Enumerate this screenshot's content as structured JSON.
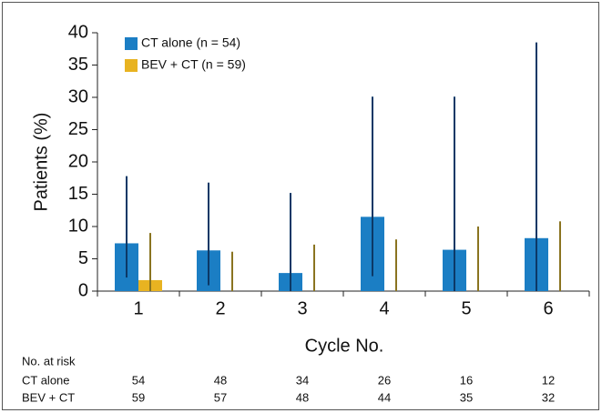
{
  "chart_data": {
    "type": "bar",
    "x_label": "Cycle No.",
    "y_label": "Patients (%)",
    "categories": [
      "1",
      "2",
      "3",
      "4",
      "5",
      "6"
    ],
    "ylim": [
      0,
      40
    ],
    "yticks": [
      0,
      5,
      10,
      15,
      20,
      25,
      30,
      35,
      40
    ],
    "series": [
      {
        "name": "CT alone (n = 54)",
        "color": "#1b7ec4",
        "error_color": "#0c3866",
        "values": [
          7.4,
          6.3,
          2.8,
          11.5,
          6.4,
          8.2
        ],
        "ci_lower": [
          2.1,
          0.9,
          0,
          2.3,
          0,
          0
        ],
        "ci_upper": [
          17.8,
          16.8,
          15.2,
          30.1,
          30.1,
          38.5
        ]
      },
      {
        "name": "BEV + CT (n = 59)",
        "color": "#e8b321",
        "error_color": "#8a7420",
        "values": [
          1.7,
          0,
          0,
          0,
          0,
          0
        ],
        "ci_lower": [
          0,
          0,
          0,
          0,
          0,
          0
        ],
        "ci_upper": [
          9.0,
          6.1,
          7.2,
          8.0,
          10.0,
          10.8
        ]
      }
    ],
    "legend": "upper left",
    "risk_table": {
      "title": "No. at risk",
      "rows": [
        {
          "label": "CT alone",
          "values": [
            54,
            48,
            34,
            26,
            16,
            12
          ]
        },
        {
          "label": "BEV + CT",
          "values": [
            59,
            57,
            48,
            44,
            35,
            32
          ]
        }
      ]
    }
  }
}
